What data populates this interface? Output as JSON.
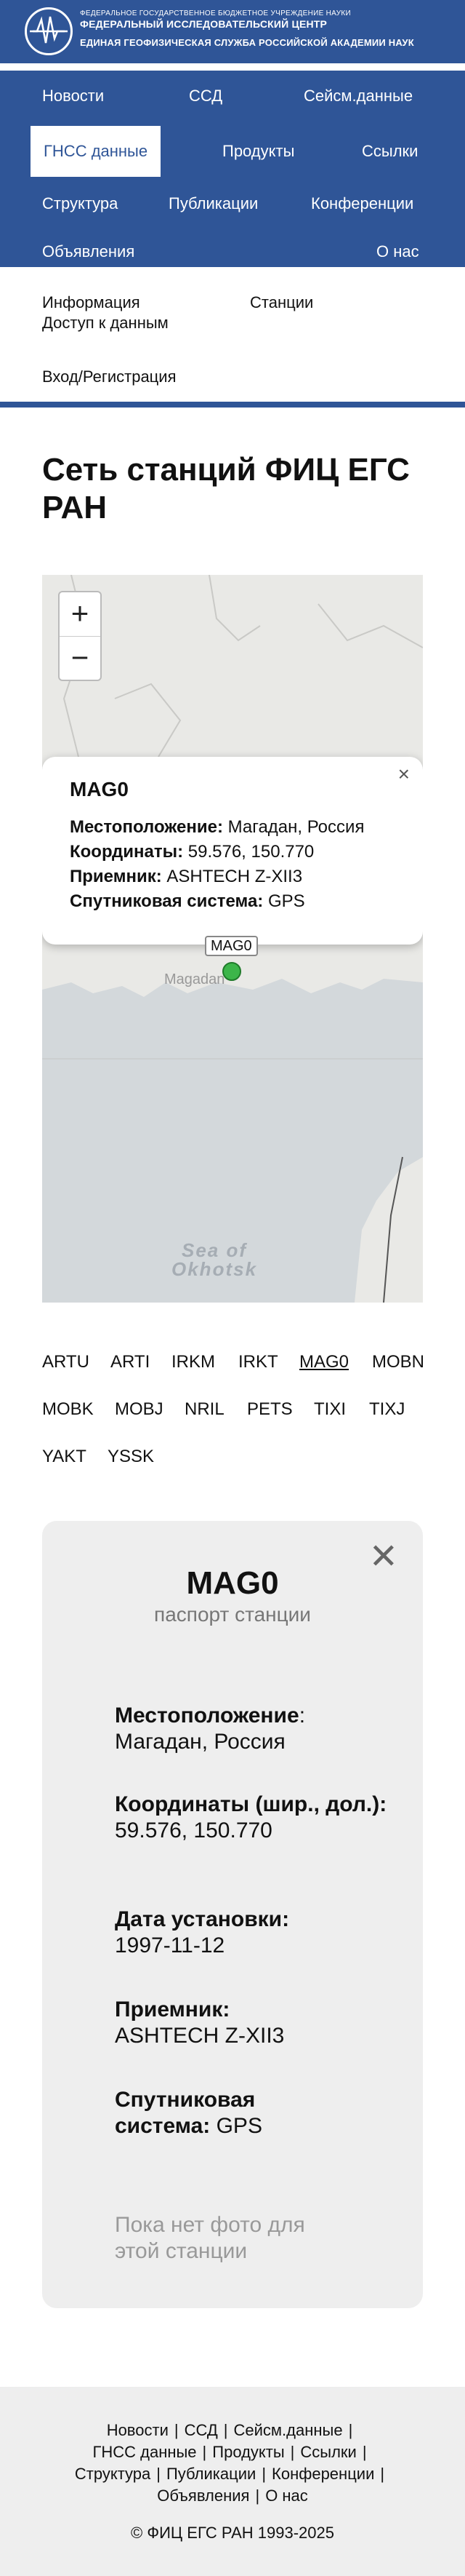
{
  "header": {
    "line1": "ФЕДЕРАЛЬНОЕ ГОСУДАРСТВЕННОЕ БЮДЖЕТНОЕ УЧРЕЖДЕНИЕ НАУКИ",
    "line2": "ФЕДЕРАЛЬНЫЙ ИССЛЕДОВАТЕЛЬСКИЙ ЦЕНТР",
    "line3": "ЕДИНАЯ ГЕОФИЗИЧЕСКАЯ СЛУЖБА РОССИЙСКОЙ АКАДЕМИИ НАУК"
  },
  "nav": {
    "news": "Новости",
    "ssd": "ССД",
    "seism": "Сейсм.данные",
    "gnss": "ГНСС данные",
    "products": "Продукты",
    "links": "Ссылки",
    "structure": "Структура",
    "publications": "Публикации",
    "conferences": "Конференции",
    "announcements": "Объявления",
    "about": "О нас"
  },
  "subnav": {
    "info": "Информация",
    "stations": "Станции",
    "data_access": "Доступ к данным",
    "login": "Вход/Регистрация"
  },
  "page_title": "Сеть станций ФИЦ ЕГС РАН",
  "map": {
    "zoom_in": "+",
    "zoom_out": "−",
    "popup": {
      "title": "MAG0",
      "location_label": "Местоположение:",
      "location_value": " Магадан, Россия",
      "coords_label": "Координаты:",
      "coords_value": " 59.576, 150.770",
      "receiver_label": "Приемник:",
      "receiver_value": " ASHTECH Z-XII3",
      "satsys_label": "Спутниковая система:",
      "satsys_value": " GPS",
      "close": "×"
    },
    "marker_label": "MAG0",
    "city_label": "Magadan",
    "sea_label_1": "Sea of",
    "sea_label_2": "Okhotsk"
  },
  "stations": [
    "ARTU",
    "ARTI",
    "IRKM",
    "IRKT",
    "MAG0",
    "MOBN",
    "MOBK",
    "MOBJ",
    "NRIL",
    "PETS",
    "TIXI",
    "TIXJ",
    "YAKT",
    "YSSK"
  ],
  "selected_station": "MAG0",
  "passport": {
    "close": "✕",
    "title": "MAG0",
    "subtitle": "паспорт станции",
    "location_label": "Местоположение",
    "location_colon": ":",
    "location_value": "Магадан, Россия",
    "coords_label": "Координаты (шир., дол.):",
    "coords_value": " 59.576, 150.770",
    "install_label": "Дата установки:",
    "install_value": "1997-11-12",
    "receiver_label": "Приемник:",
    "receiver_value": "ASHTECH Z-XII3",
    "satsys_label": "Спутниковая система:",
    "satsys_value": " GPS",
    "no_photo": "Пока нет фото для этой станции"
  },
  "footer": {
    "row1": [
      "Новости",
      "ССД",
      "Сейсм.данные"
    ],
    "row2": [
      "ГНСС данные",
      "Продукты",
      "Ссылки"
    ],
    "row3": [
      "Структура",
      "Публикации",
      "Конференции"
    ],
    "row4": [
      "Объявления",
      "О нас"
    ],
    "separator": "|",
    "copyright": "© ФИЦ ЕГС РАН 1993-2025"
  },
  "colors": {
    "brand": "#2f5597",
    "marker": "#3cb54a",
    "card_bg": "#eeeeee"
  }
}
